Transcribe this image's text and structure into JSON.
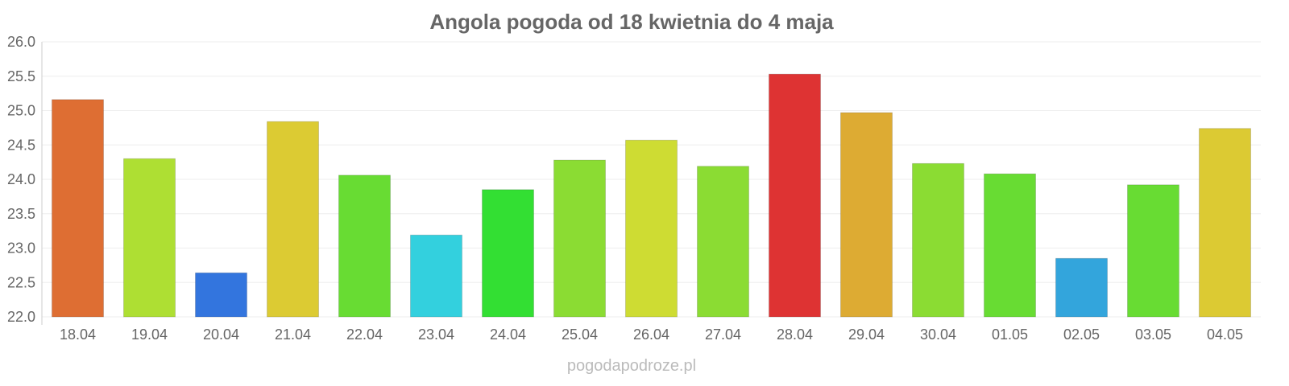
{
  "chart_data": {
    "type": "bar",
    "title": "Angola pogoda od 18 kwietnia do 4 maja",
    "xlabel": "",
    "ylabel": "",
    "ylim": [
      22.0,
      26.0
    ],
    "yticks": [
      "22.0",
      "22.5",
      "23.0",
      "23.5",
      "24.0",
      "24.5",
      "25.0",
      "25.5",
      "26.0"
    ],
    "grid": true,
    "categories": [
      "18.04",
      "19.04",
      "20.04",
      "21.04",
      "22.04",
      "23.04",
      "24.04",
      "25.04",
      "26.04",
      "27.04",
      "28.04",
      "29.04",
      "30.04",
      "01.05",
      "02.05",
      "03.05",
      "04.05"
    ],
    "values": [
      25.16,
      24.3,
      22.64,
      24.84,
      24.06,
      23.19,
      23.85,
      24.28,
      24.57,
      24.19,
      25.53,
      24.97,
      24.23,
      24.08,
      22.85,
      23.92,
      24.74
    ],
    "colors": [
      "#de6e33",
      "#aedf33",
      "#3375de",
      "#dccb33",
      "#68dc33",
      "#33d0de",
      "#33df33",
      "#8bdc33",
      "#cedc33",
      "#8bdc33",
      "#de3333",
      "#ddab33",
      "#8bdc33",
      "#68dc33",
      "#33a5dc",
      "#68dc33",
      "#dcca33"
    ]
  },
  "watermark": "pogodapodroze.pl"
}
